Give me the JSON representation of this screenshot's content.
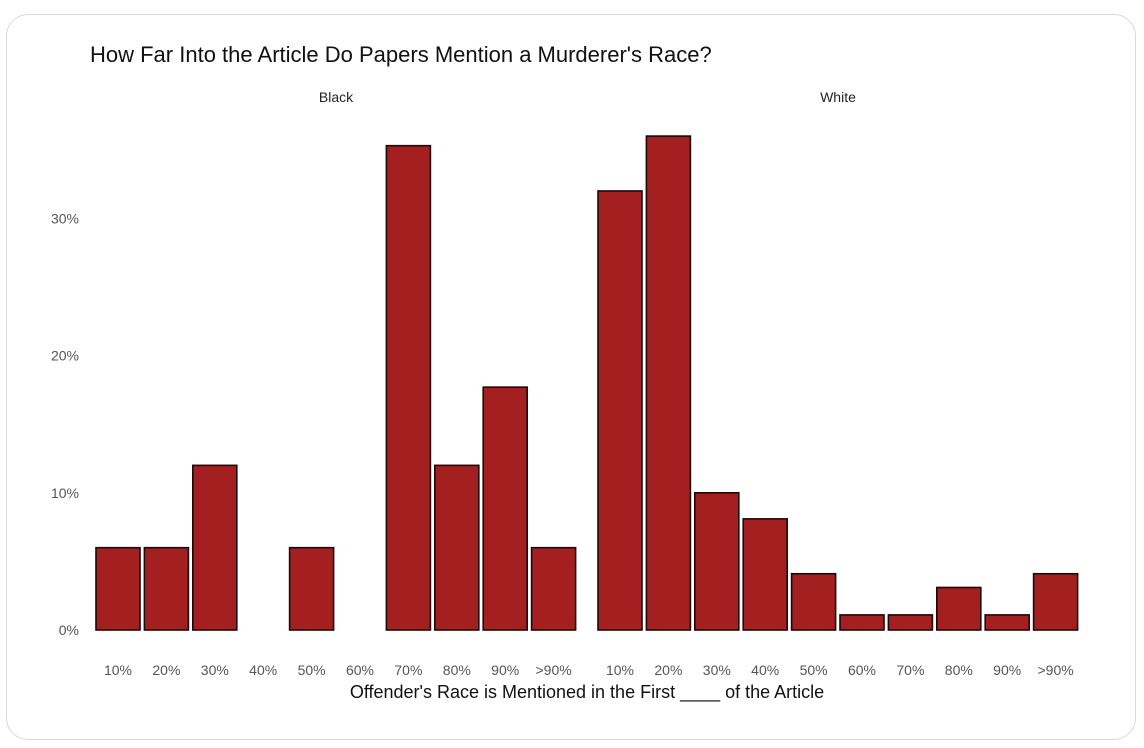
{
  "chart_data": {
    "type": "bar",
    "title": "How Far Into the Article Do Papers Mention a Murderer's Race?",
    "xlabel": "Offender's Race is Mentioned in the First ____ of the Article",
    "ylabel": "",
    "ylim": [
      0,
      36
    ],
    "yticks": [
      "0%",
      "10%",
      "20%",
      "30%"
    ],
    "yticks_values": [
      0,
      10,
      20,
      30
    ],
    "grid": false,
    "categories": [
      "10%",
      "20%",
      "30%",
      "40%",
      "50%",
      "60%",
      "70%",
      "80%",
      "90%",
      ">90%"
    ],
    "panels": [
      {
        "name": "Black",
        "values": [
          6,
          6,
          12,
          0,
          6,
          0,
          35.3,
          12,
          17.7,
          6
        ]
      },
      {
        "name": "White",
        "values": [
          32,
          36,
          10,
          8.1,
          4.1,
          1.1,
          1.1,
          3.1,
          1.1,
          4.1
        ]
      }
    ],
    "colors": {
      "bar_fill": "#a31f20",
      "bar_stroke": "#1a0a0a"
    }
  }
}
